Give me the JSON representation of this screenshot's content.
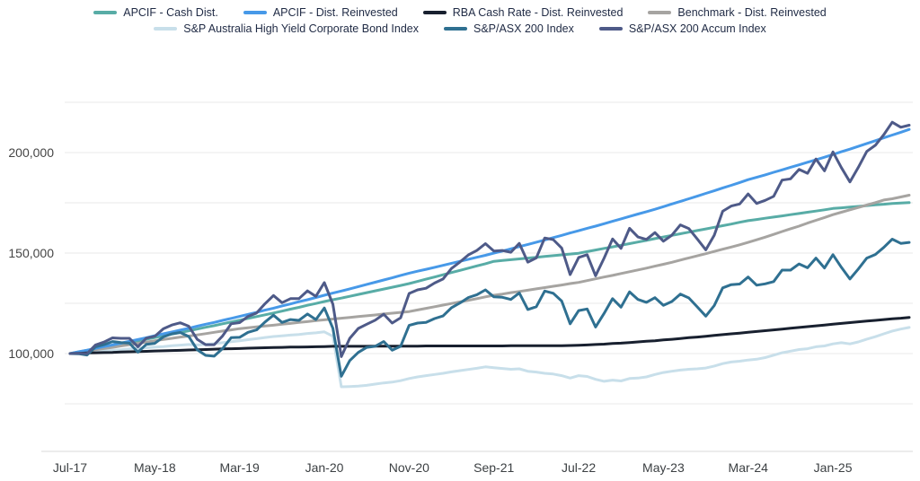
{
  "legend": {
    "rows": [
      [
        {
          "label": "APCIF - Cash Dist.",
          "color": "#58ACA6"
        },
        {
          "label": "APCIF - Dist. Reinvested",
          "color": "#4799E8"
        },
        {
          "label": "RBA Cash Rate - Dist. Reinvested",
          "color": "#18202F"
        },
        {
          "label": "Benchmark - Dist. Reinvested",
          "color": "#A6A4A1"
        }
      ],
      [
        {
          "label": "S&P Australia High Yield Corporate Bond Index",
          "color": "#C8DFEA"
        },
        {
          "label": "S&P/ASX 200 Index",
          "color": "#2F7091"
        },
        {
          "label": "S&P/ASX 200 Accum Index",
          "color": "#4E5A88"
        }
      ]
    ]
  },
  "chart_data": {
    "type": "line",
    "title": "",
    "xlabel": "",
    "ylabel": "",
    "x_unit": "month",
    "n_points": 100,
    "x_start": "Jul-17",
    "x_tick_labels": [
      "Jul-17",
      "May-18",
      "Mar-19",
      "Jan-20",
      "Nov-20",
      "Sep-21",
      "Jul-22",
      "May-23",
      "Mar-24",
      "Jan-25"
    ],
    "x_tick_indices": [
      0,
      10,
      20,
      30,
      40,
      50,
      60,
      70,
      80,
      90
    ],
    "y_tick_labels": [
      {
        "text": "200,000",
        "value": 200000
      },
      {
        "text": "150,000",
        "value": 150000
      },
      {
        "text": "100,000",
        "value": 100000
      }
    ],
    "gridline_values": [
      225000,
      200000,
      175000,
      150000,
      125000,
      100000,
      75000
    ],
    "ylim": [
      50000,
      230000
    ],
    "grid_color": "#E9E9E9",
    "axis_line_color": "#DADADA",
    "draw_order": [
      4,
      0,
      3,
      1,
      2,
      5,
      6
    ],
    "series": [
      {
        "name": "APCIF - Cash Dist.",
        "color": "#58ACA6",
        "values": [
          100000,
          100800,
          101600,
          102300,
          103100,
          103900,
          104700,
          105500,
          106300,
          107200,
          108000,
          108800,
          109700,
          110500,
          111300,
          112200,
          113100,
          113900,
          114800,
          115700,
          116600,
          117500,
          118400,
          119300,
          120200,
          121100,
          122100,
          123000,
          124000,
          124900,
          125900,
          126800,
          127600,
          128500,
          129400,
          130300,
          131200,
          132100,
          133000,
          133900,
          134800,
          135900,
          137000,
          138100,
          139200,
          140300,
          141400,
          142500,
          143600,
          144700,
          145900,
          146300,
          146700,
          147100,
          147500,
          147900,
          148300,
          148700,
          149100,
          149500,
          149900,
          150700,
          151500,
          152300,
          153100,
          153900,
          154700,
          155500,
          156300,
          157200,
          158000,
          158800,
          159600,
          160400,
          161200,
          162000,
          162800,
          163600,
          164400,
          165300,
          166100,
          166700,
          167300,
          167900,
          168500,
          169100,
          169700,
          170300,
          170900,
          171500,
          172200,
          172500,
          172900,
          173200,
          173600,
          174000,
          174300,
          174700,
          174900,
          175100
        ]
      },
      {
        "name": "APCIF - Dist. Reinvested",
        "color": "#4799E8",
        "values": [
          100000,
          100900,
          101700,
          102600,
          103500,
          104300,
          105200,
          106100,
          107000,
          107900,
          108900,
          109800,
          110700,
          111700,
          112600,
          113600,
          114600,
          115500,
          116500,
          117500,
          118500,
          119500,
          120500,
          121600,
          122600,
          123700,
          124700,
          125800,
          126800,
          127900,
          129000,
          130100,
          131100,
          132200,
          133300,
          134400,
          135500,
          136600,
          137700,
          138900,
          140000,
          141000,
          141900,
          142900,
          143900,
          144900,
          145900,
          146900,
          147900,
          148900,
          150000,
          151000,
          152100,
          153200,
          154300,
          155400,
          156500,
          157700,
          158800,
          160000,
          161100,
          162300,
          163400,
          164600,
          165800,
          167000,
          168200,
          169400,
          170600,
          171800,
          173100,
          174400,
          175700,
          177000,
          178300,
          179700,
          181000,
          182400,
          183700,
          185100,
          186500,
          187700,
          188900,
          190200,
          191400,
          192700,
          193900,
          195200,
          196400,
          197700,
          199000,
          200400,
          201700,
          203100,
          204500,
          205900,
          207300,
          208700,
          210100,
          211500
        ]
      },
      {
        "name": "RBA Cash Rate - Dist. Reinvested",
        "color": "#18202F",
        "values": [
          100000,
          100100,
          100300,
          100400,
          100500,
          100600,
          100800,
          100900,
          101000,
          101100,
          101300,
          101400,
          101500,
          101600,
          101800,
          101900,
          102000,
          102200,
          102300,
          102400,
          102500,
          102700,
          102800,
          102900,
          103000,
          103100,
          103200,
          103200,
          103300,
          103400,
          103500,
          103600,
          103600,
          103600,
          103600,
          103600,
          103700,
          103700,
          103700,
          103700,
          103700,
          103700,
          103800,
          103800,
          103800,
          103800,
          103800,
          103800,
          103800,
          103800,
          103800,
          103800,
          103900,
          103900,
          103900,
          103900,
          103900,
          103900,
          103900,
          104000,
          104100,
          104300,
          104500,
          104700,
          105000,
          105200,
          105500,
          105800,
          106100,
          106400,
          106800,
          107100,
          107500,
          107900,
          108200,
          108600,
          109000,
          109400,
          109800,
          110200,
          110600,
          111000,
          111400,
          111800,
          112200,
          112600,
          113000,
          113400,
          113800,
          114200,
          114600,
          115000,
          115400,
          115800,
          116200,
          116500,
          116900,
          117300,
          117600,
          118000
        ]
      },
      {
        "name": "Benchmark - Dist. Reinvested",
        "color": "#A6A4A1",
        "values": [
          100000,
          100600,
          101200,
          101900,
          102500,
          103100,
          103800,
          104400,
          105100,
          105700,
          106400,
          107000,
          107600,
          108200,
          108700,
          109300,
          109900,
          110600,
          111200,
          111800,
          112400,
          112800,
          113300,
          113700,
          114100,
          114600,
          115000,
          115500,
          115900,
          116400,
          116800,
          117200,
          117600,
          118000,
          118400,
          118800,
          119200,
          119700,
          120100,
          120500,
          120900,
          121700,
          122500,
          123300,
          124100,
          124900,
          125700,
          126500,
          127300,
          128200,
          129000,
          129600,
          130300,
          130900,
          131500,
          132200,
          132800,
          133500,
          134100,
          134800,
          135400,
          136300,
          137200,
          138100,
          138900,
          139800,
          140700,
          141600,
          142500,
          143500,
          144400,
          145400,
          146500,
          147600,
          148600,
          149700,
          150800,
          151900,
          153000,
          154100,
          155300,
          156600,
          157900,
          159300,
          160700,
          162100,
          163400,
          164900,
          166300,
          167700,
          169100,
          170300,
          171500,
          172700,
          173900,
          175100,
          176400,
          177000,
          177900,
          178800
        ]
      },
      {
        "name": "S&P Australia High Yield Corporate Bond Index",
        "color": "#C8DFEA",
        "values": [
          100000,
          100300,
          100600,
          100900,
          101300,
          101600,
          101900,
          102300,
          102500,
          102900,
          103200,
          103500,
          103900,
          104200,
          104500,
          104300,
          104600,
          104900,
          105400,
          105900,
          106400,
          106900,
          107400,
          108000,
          108500,
          108800,
          109200,
          109500,
          110000,
          110300,
          110800,
          108600,
          83500,
          83600,
          83800,
          84200,
          84800,
          85400,
          85800,
          86500,
          87600,
          88400,
          89000,
          89600,
          90200,
          90900,
          91500,
          92100,
          92700,
          93400,
          93000,
          92600,
          92200,
          92400,
          91200,
          90800,
          90200,
          89800,
          89000,
          87800,
          89000,
          88600,
          87200,
          86200,
          86800,
          86400,
          87600,
          87800,
          88400,
          89600,
          90600,
          91200,
          91800,
          92200,
          92400,
          92800,
          93800,
          95000,
          95800,
          96200,
          96800,
          97200,
          98000,
          99200,
          100400,
          101200,
          102000,
          102400,
          103400,
          103800,
          104800,
          105400,
          104800,
          105800,
          107200,
          108400,
          109800,
          111200,
          112200,
          113000
        ]
      },
      {
        "name": "S&P/ASX 200 Index",
        "color": "#2F7091",
        "values": [
          100000,
          99900,
          99300,
          103300,
          104400,
          106000,
          105500,
          105200,
          100700,
          104600,
          105100,
          108300,
          109800,
          110500,
          108500,
          101900,
          99100,
          98700,
          102500,
          107900,
          108100,
          110600,
          111800,
          115700,
          119100,
          115500,
          116900,
          116500,
          119700,
          116900,
          122700,
          112600,
          88700,
          96500,
          100600,
          103100,
          103600,
          106000,
          101700,
          103600,
          114000,
          115200,
          115500,
          117400,
          118700,
          122800,
          125200,
          127900,
          129300,
          131700,
          128200,
          128000,
          126900,
          130200,
          121900,
          123300,
          131100,
          130000,
          126100,
          114800,
          121400,
          122200,
          113200,
          120000,
          127300,
          123100,
          130700,
          126900,
          125500,
          127800,
          124000,
          125900,
          129600,
          127700,
          123200,
          118600,
          123900,
          132700,
          134300,
          134600,
          138100,
          134000,
          134700,
          135800,
          141500,
          141500,
          144600,
          142700,
          147500,
          142600,
          149200,
          142900,
          137100,
          142100,
          147500,
          149300,
          152800,
          156900,
          154800,
          155300
        ]
      },
      {
        "name": "S&P/ASX 200 Accum Index",
        "color": "#4E5A88",
        "values": [
          100000,
          100200,
          100000,
          104300,
          105700,
          107800,
          107600,
          107600,
          103400,
          107700,
          108600,
          112300,
          114200,
          115300,
          113600,
          107100,
          104400,
          104400,
          108800,
          114800,
          115400,
          118500,
          120200,
          124800,
          128900,
          125300,
          127300,
          127300,
          131200,
          128500,
          135300,
          124600,
          98500,
          107600,
          112500,
          114600,
          116600,
          119600,
          115200,
          117800,
          129900,
          131700,
          132500,
          135100,
          137100,
          142300,
          145600,
          149100,
          151300,
          154700,
          151000,
          151300,
          150400,
          154800,
          145500,
          147600,
          157500,
          156700,
          152500,
          139300,
          147800,
          149200,
          138700,
          147500,
          157000,
          152300,
          162300,
          158000,
          156800,
          160200,
          155900,
          158900,
          164000,
          162200,
          157000,
          151600,
          158900,
          170800,
          173400,
          174400,
          179400,
          174700,
          176200,
          178200,
          186300,
          186900,
          191600,
          189700,
          196800,
          190900,
          200300,
          192500,
          185400,
          192700,
          200600,
          203600,
          208900,
          215100,
          212600,
          213600
        ]
      }
    ]
  }
}
